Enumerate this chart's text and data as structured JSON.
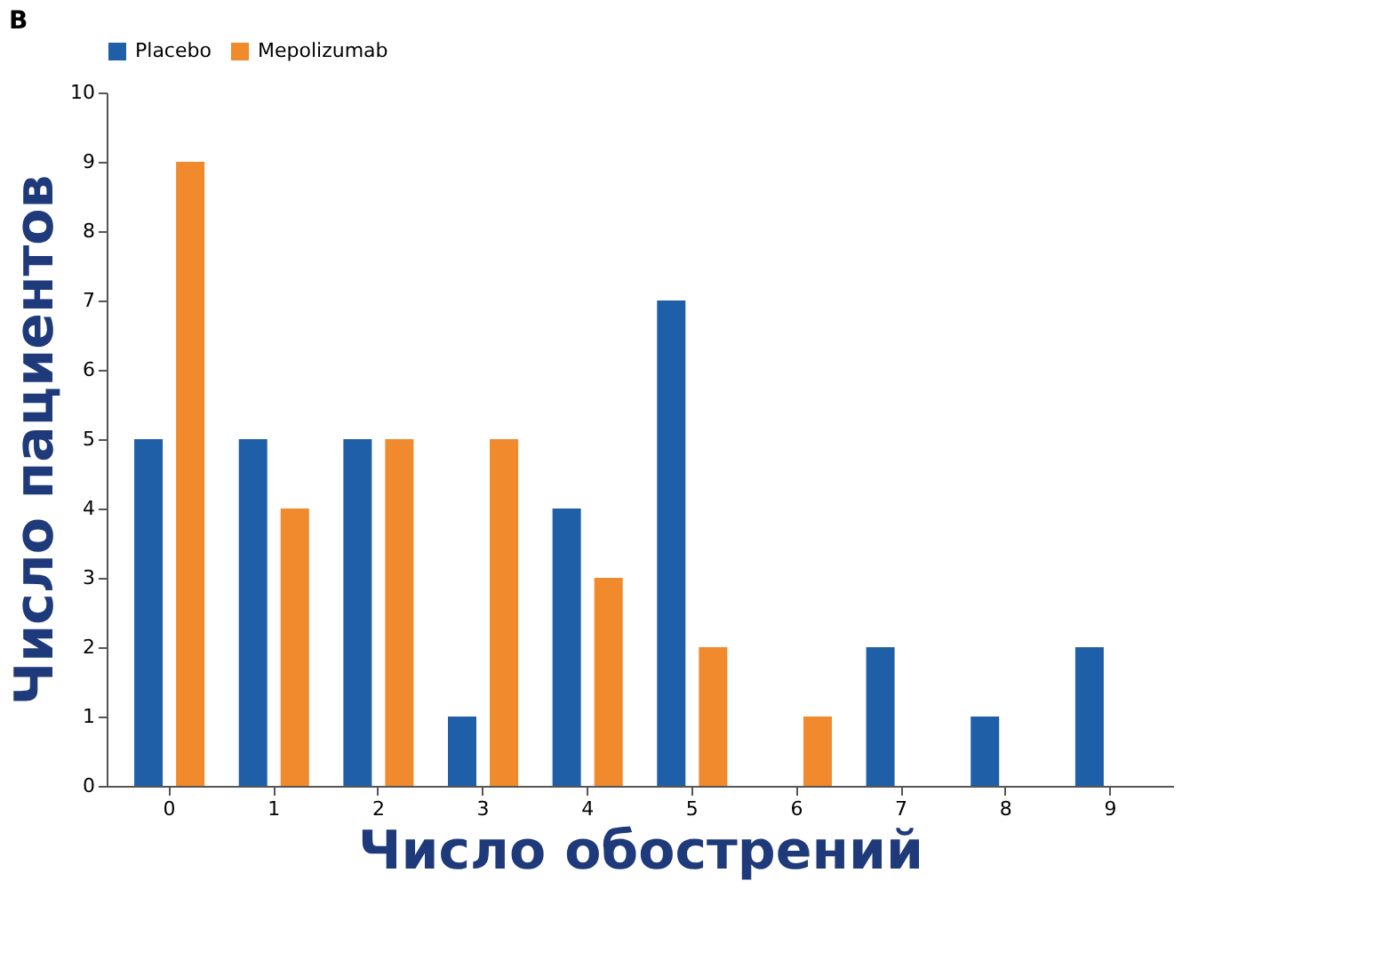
{
  "chart_data": {
    "type": "bar",
    "title": "B",
    "xlabel": "Число обострений",
    "ylabel": "Число пациентов",
    "categories": [
      "0",
      "1",
      "2",
      "3",
      "4",
      "5",
      "6",
      "7",
      "8",
      "9"
    ],
    "series": [
      {
        "name": "Placebo",
        "color": "#1f5fa8",
        "values": [
          5,
          5,
          5,
          1,
          4,
          7,
          0,
          2,
          1,
          2
        ]
      },
      {
        "name": "Mepolizumab",
        "color": "#f08a2c",
        "values": [
          9,
          4,
          5,
          5,
          3,
          2,
          1,
          0,
          0,
          0
        ]
      }
    ],
    "ylim": [
      0,
      10
    ],
    "yticks": [
      0,
      1,
      2,
      3,
      4,
      5,
      6,
      7,
      8,
      9,
      10
    ],
    "grid": false,
    "legend": "top"
  }
}
